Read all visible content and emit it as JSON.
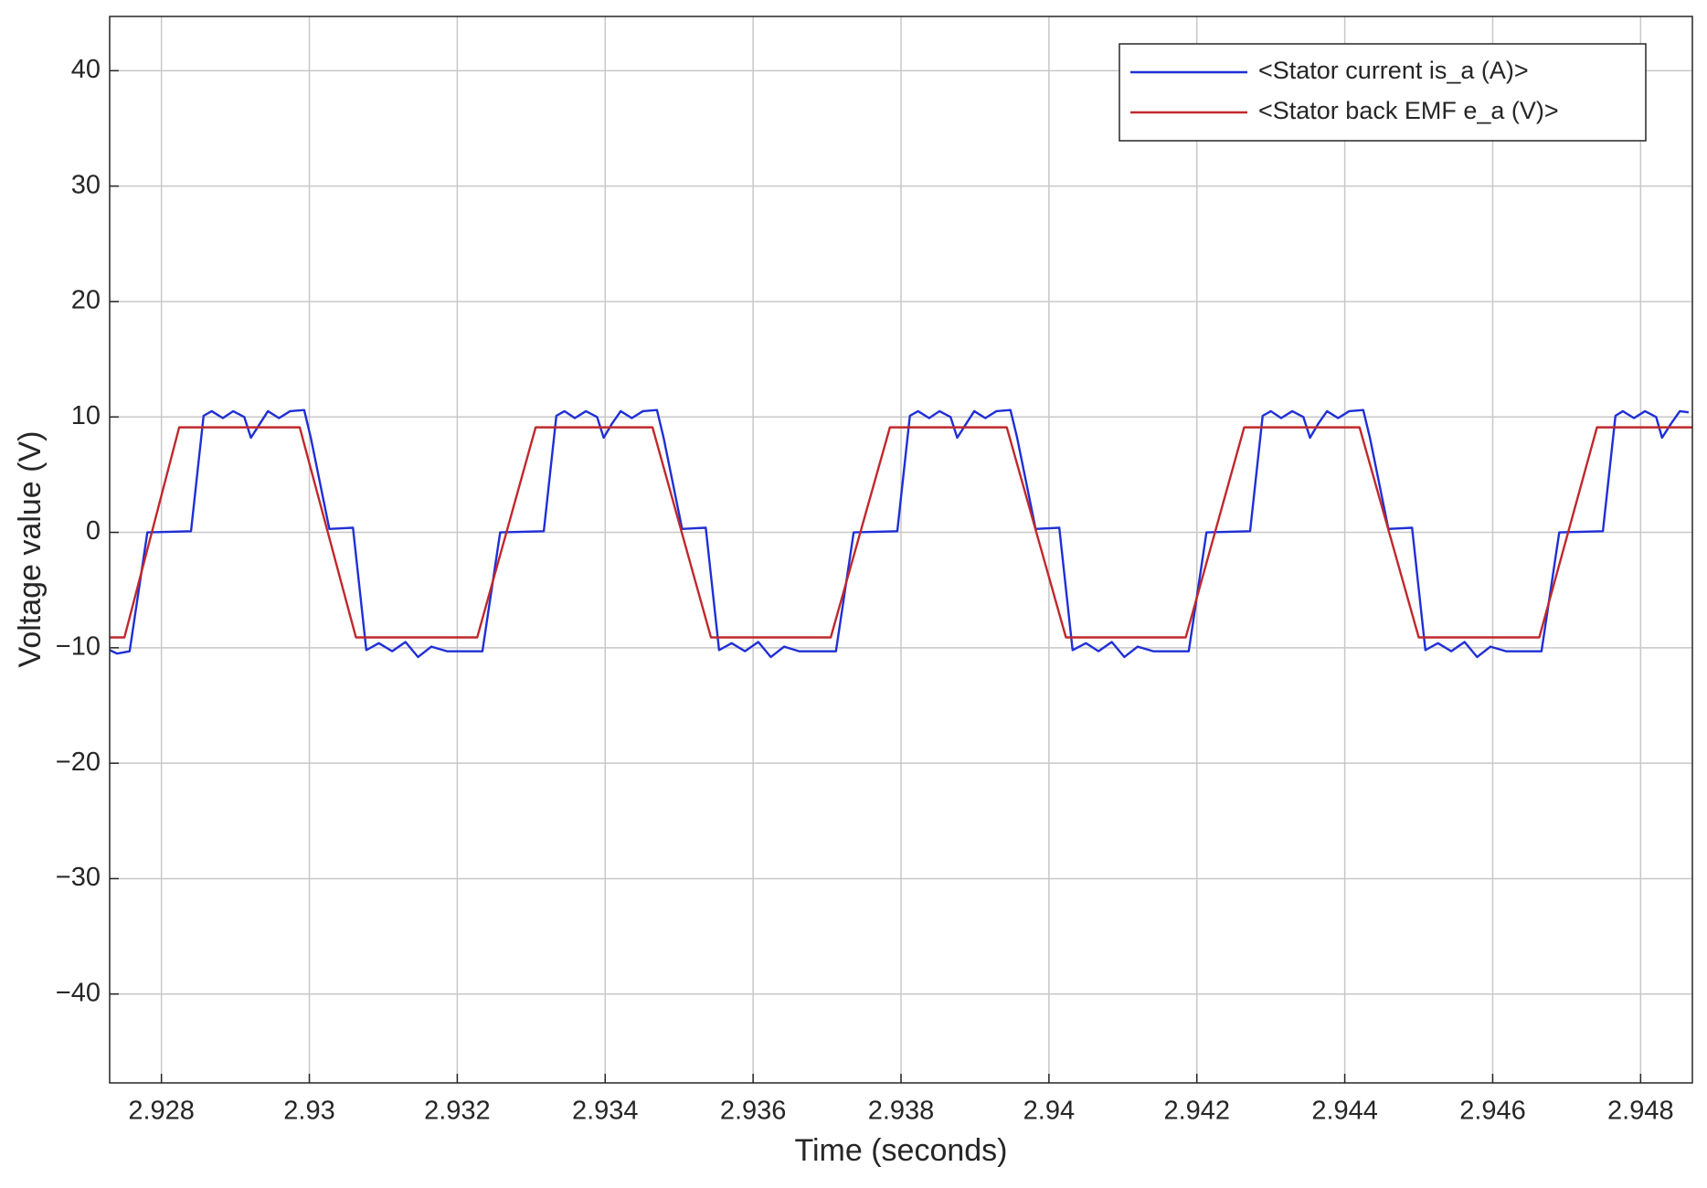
{
  "chart_data": {
    "type": "line",
    "xlabel": "Time (seconds)",
    "ylabel": "Voltage value (V)",
    "xlim": [
      2.9273,
      2.9487
    ],
    "ylim": [
      -47.7,
      44.7
    ],
    "xticks": [
      2.928,
      2.93,
      2.932,
      2.934,
      2.936,
      2.938,
      2.94,
      2.942,
      2.944,
      2.946,
      2.948
    ],
    "yticks": [
      {
        "value": -40,
        "label": "−40"
      },
      {
        "value": -30,
        "label": "−30"
      },
      {
        "value": -20,
        "label": "−20"
      },
      {
        "value": -10,
        "label": "−10"
      },
      0,
      10,
      20,
      30,
      40
    ],
    "grid": true,
    "legend": "upper right",
    "series": [
      {
        "name": "<Stator current is_a (A)>",
        "color": "#1f2fd6",
        "x": [
          2.9273,
          2.9274,
          2.92757,
          2.92781,
          2.9284,
          2.92857,
          2.92868,
          2.92883,
          2.92897,
          2.92912,
          2.92921,
          2.92933,
          2.92944,
          2.92959,
          2.92974,
          2.92993,
          2.93002,
          2.93027,
          2.93059,
          2.93077,
          2.93094,
          2.93112,
          2.9313,
          2.93147,
          2.93165,
          2.93186,
          2.93234,
          2.93258,
          2.93317,
          2.93334,
          2.93345,
          2.93359,
          2.93374,
          2.93389,
          2.93398,
          2.93409,
          2.93421,
          2.93436,
          2.93451,
          2.9347,
          2.93479,
          2.93504,
          2.93536,
          2.93554,
          2.93571,
          2.93589,
          2.93607,
          2.93624,
          2.93642,
          2.93662,
          2.93712,
          2.93736,
          2.93795,
          2.93812,
          2.93823,
          2.93838,
          2.93852,
          2.93867,
          2.93876,
          2.93888,
          2.93899,
          2.93914,
          2.93929,
          2.93948,
          2.93957,
          2.93982,
          2.94014,
          2.94032,
          2.9405,
          2.94067,
          2.94085,
          2.94102,
          2.9412,
          2.94141,
          2.94189,
          2.94213,
          2.94272,
          2.94289,
          2.943,
          2.94314,
          2.94329,
          2.94344,
          2.94353,
          2.94364,
          2.94376,
          2.94391,
          2.94406,
          2.94425,
          2.94434,
          2.94459,
          2.94491,
          2.94509,
          2.94526,
          2.94544,
          2.94562,
          2.94579,
          2.94597,
          2.94618,
          2.94666,
          2.9469,
          2.94749,
          2.94766,
          2.94776,
          2.94791,
          2.94806,
          2.94821,
          2.94829,
          2.94841,
          2.94853,
          2.94865
        ],
        "values": [
          -10.2,
          -10.5,
          -10.3,
          0,
          0.1,
          10.1,
          10.5,
          9.9,
          10.5,
          10,
          8.2,
          9.4,
          10.5,
          9.9,
          10.5,
          10.6,
          8.2,
          0.3,
          0.4,
          -10.2,
          -9.6,
          -10.3,
          -9.5,
          -10.8,
          -9.9,
          -10.3,
          -10.3,
          0,
          0.1,
          10.1,
          10.5,
          9.9,
          10.5,
          10,
          8.2,
          9.4,
          10.5,
          9.9,
          10.5,
          10.6,
          8.2,
          0.3,
          0.4,
          -10.2,
          -9.6,
          -10.3,
          -9.5,
          -10.8,
          -9.9,
          -10.3,
          -10.3,
          0,
          0.1,
          10.1,
          10.5,
          9.9,
          10.5,
          10,
          8.2,
          9.4,
          10.5,
          9.9,
          10.5,
          10.6,
          8.2,
          0.3,
          0.4,
          -10.2,
          -9.6,
          -10.3,
          -9.5,
          -10.8,
          -9.9,
          -10.3,
          -10.3,
          0,
          0.1,
          10.1,
          10.5,
          9.9,
          10.5,
          10,
          8.2,
          9.4,
          10.5,
          9.9,
          10.5,
          10.6,
          8.2,
          0.3,
          0.4,
          -10.2,
          -9.6,
          -10.3,
          -9.5,
          -10.8,
          -9.9,
          -10.3,
          -10.3,
          0,
          0.1,
          10.1,
          10.5,
          9.9,
          10.5,
          10,
          8.2,
          9.4,
          10.5,
          10.4
        ]
      },
      {
        "name": "<Stator back EMF e_a (V)>",
        "color": "#c0282d",
        "x": [
          2.9273,
          2.9275,
          2.92824,
          2.92987,
          2.93063,
          2.93227,
          2.93306,
          2.93464,
          2.93543,
          2.93705,
          2.93785,
          2.93943,
          2.94023,
          2.94185,
          2.94264,
          2.9442,
          2.945,
          2.94663,
          2.94741,
          2.9487
        ],
        "values": [
          -9.1,
          -9.1,
          9.1,
          9.1,
          -9.1,
          -9.1,
          9.1,
          9.1,
          -9.1,
          -9.1,
          9.1,
          9.1,
          -9.1,
          -9.1,
          9.1,
          9.1,
          -9.1,
          -9.1,
          9.1,
          9.1
        ]
      }
    ]
  }
}
